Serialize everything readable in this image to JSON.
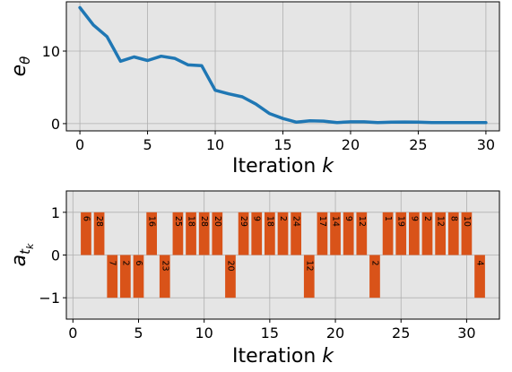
{
  "colors": {
    "line": "#1f77b4",
    "bar": "#d95319",
    "plot_bg": "#e5e5e5",
    "grid": "#b0b0b0"
  },
  "chart_data": [
    {
      "type": "line",
      "xlabel_text": "Iteration ",
      "xlabel_var": "k",
      "ylabel_var": "e",
      "ylabel_sub": "θ",
      "xlim": [
        -1,
        31
      ],
      "ylim": [
        -1,
        16.8
      ],
      "xticks": [
        0,
        5,
        10,
        15,
        20,
        25,
        30
      ],
      "yticks": [
        0,
        10
      ],
      "grid": true,
      "x": [
        0,
        1,
        2,
        3,
        4,
        5,
        6,
        7,
        8,
        9,
        10,
        11,
        12,
        13,
        14,
        15,
        16,
        17,
        18,
        19,
        20,
        21,
        22,
        23,
        24,
        25,
        26,
        27,
        28,
        29,
        30
      ],
      "y": [
        16.0,
        13.6,
        12.0,
        8.6,
        9.2,
        8.7,
        9.3,
        9.0,
        8.1,
        8.0,
        4.6,
        4.1,
        3.7,
        2.7,
        1.4,
        0.7,
        0.2,
        0.4,
        0.35,
        0.15,
        0.25,
        0.25,
        0.15,
        0.2,
        0.22,
        0.2,
        0.15,
        0.15,
        0.15,
        0.15,
        0.15
      ]
    },
    {
      "type": "bar",
      "xlabel_text": "Iteration ",
      "xlabel_var": "k",
      "ylabel_var": "a",
      "ylabel_sub": "t",
      "ylabel_subsub": "k",
      "xlim": [
        -0.5,
        32.5
      ],
      "ylim": [
        -1.5,
        1.5
      ],
      "xticks": [
        0,
        5,
        10,
        15,
        20,
        25,
        30
      ],
      "yticks": [
        -1,
        0,
        1
      ],
      "grid": true,
      "bar_width": 0.8,
      "bars": [
        {
          "x": 1,
          "value": 1,
          "label": "6"
        },
        {
          "x": 2,
          "value": 1,
          "label": "28"
        },
        {
          "x": 3,
          "value": -1,
          "label": "7"
        },
        {
          "x": 4,
          "value": -1,
          "label": "2"
        },
        {
          "x": 5,
          "value": -1,
          "label": "6"
        },
        {
          "x": 6,
          "value": 1,
          "label": "16"
        },
        {
          "x": 7,
          "value": -1,
          "label": "23"
        },
        {
          "x": 8,
          "value": 1,
          "label": "25"
        },
        {
          "x": 9,
          "value": 1,
          "label": "18"
        },
        {
          "x": 10,
          "value": 1,
          "label": "28"
        },
        {
          "x": 11,
          "value": 1,
          "label": "20"
        },
        {
          "x": 12,
          "value": -1,
          "label": "20"
        },
        {
          "x": 13,
          "value": 1,
          "label": "29"
        },
        {
          "x": 14,
          "value": 1,
          "label": "9"
        },
        {
          "x": 15,
          "value": 1,
          "label": "18"
        },
        {
          "x": 16,
          "value": 1,
          "label": "2"
        },
        {
          "x": 17,
          "value": 1,
          "label": "24"
        },
        {
          "x": 18,
          "value": -1,
          "label": "12"
        },
        {
          "x": 19,
          "value": 1,
          "label": "17"
        },
        {
          "x": 20,
          "value": 1,
          "label": "14"
        },
        {
          "x": 21,
          "value": 1,
          "label": "9"
        },
        {
          "x": 22,
          "value": 1,
          "label": "12"
        },
        {
          "x": 23,
          "value": -1,
          "label": "2"
        },
        {
          "x": 24,
          "value": 1,
          "label": "1"
        },
        {
          "x": 25,
          "value": 1,
          "label": "19"
        },
        {
          "x": 26,
          "value": 1,
          "label": "9"
        },
        {
          "x": 27,
          "value": 1,
          "label": "2"
        },
        {
          "x": 28,
          "value": 1,
          "label": "12"
        },
        {
          "x": 29,
          "value": 1,
          "label": "8"
        },
        {
          "x": 30,
          "value": 1,
          "label": "10"
        },
        {
          "x": 31,
          "value": -1,
          "label": "4"
        }
      ]
    }
  ]
}
